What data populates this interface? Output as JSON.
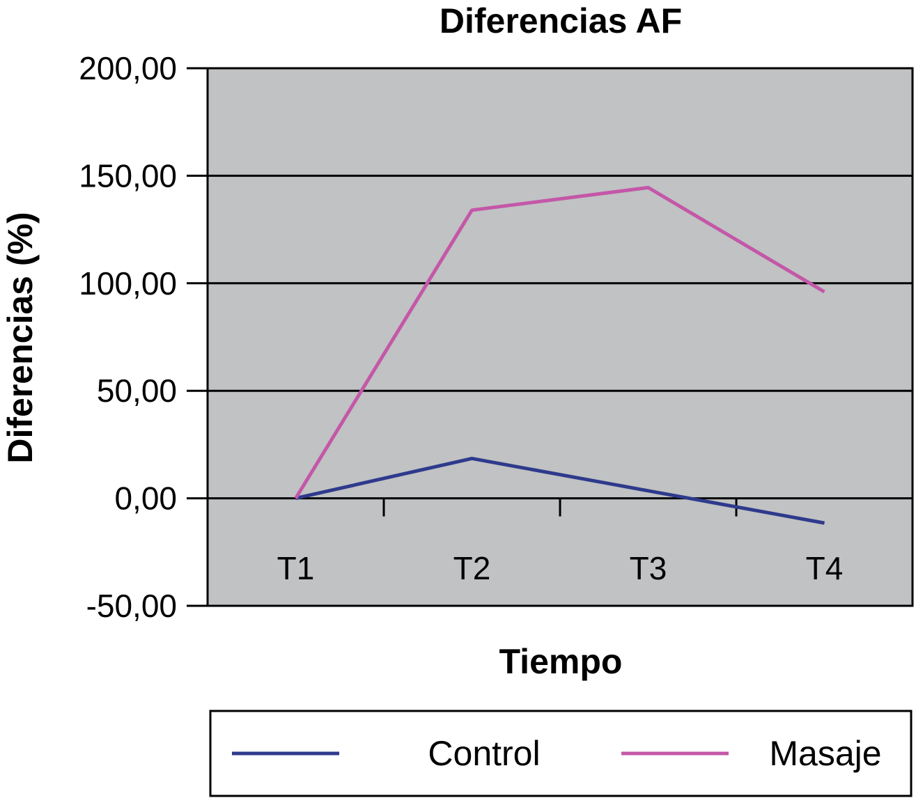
{
  "chart_data": {
    "type": "line",
    "title": "Diferencias AF",
    "xlabel": "Tiempo",
    "ylabel": "Diferencias (%)",
    "categories": [
      "T1",
      "T2",
      "T3",
      "T4"
    ],
    "ylim": [
      -50,
      200
    ],
    "yticks": [
      "-50,00",
      "0,00",
      "50,00",
      "100,00",
      "150,00",
      "200,00"
    ],
    "ytick_values": [
      -50,
      0,
      50,
      100,
      150,
      200
    ],
    "grid": true,
    "plot_background": "#c0c2c3",
    "legend_position": "bottom",
    "series": [
      {
        "name": "Control",
        "color": "#2e3a8c",
        "values": [
          0,
          18.5,
          3.5,
          -11.5
        ]
      },
      {
        "name": "Masaje",
        "color": "#c457a8",
        "values": [
          0,
          134,
          144.5,
          96
        ]
      }
    ]
  }
}
